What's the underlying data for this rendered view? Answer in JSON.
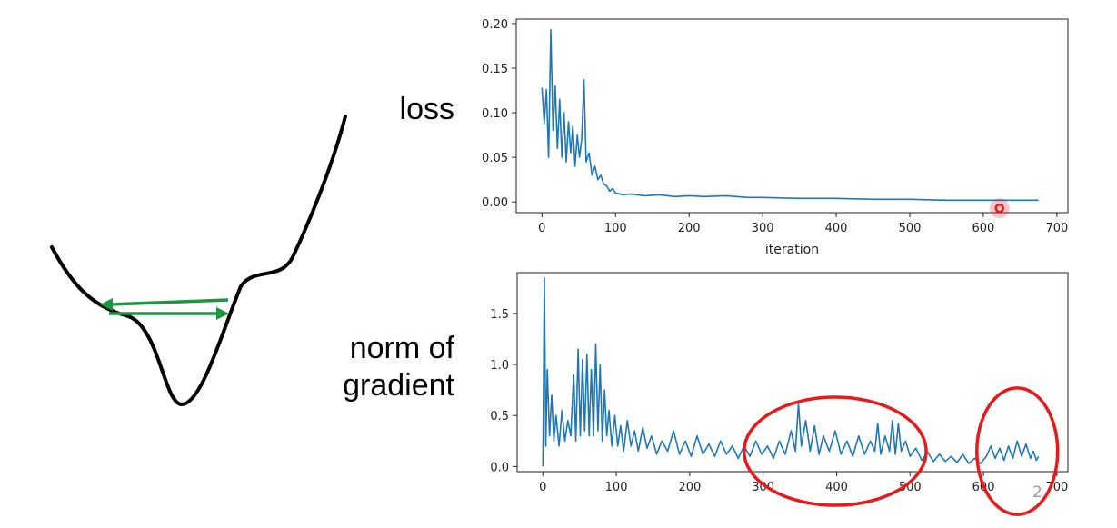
{
  "labels": {
    "loss": "loss",
    "gradient_line1": "norm of",
    "gradient_line2": "gradient"
  },
  "page_number": "2",
  "colors": {
    "series": "#1f77b4",
    "highlight": "#e41a1c",
    "arrow": "#1a9641",
    "curve": "#000000"
  },
  "chart_data": [
    {
      "type": "line",
      "xlabel": "iteration",
      "ylabel": "",
      "xlim": [
        -35,
        715
      ],
      "ylim": [
        -0.012,
        0.205
      ],
      "xticks": [
        0,
        100,
        200,
        300,
        400,
        500,
        600,
        700
      ],
      "yticks": [
        "0.00",
        "0.05",
        "0.10",
        "0.15",
        "0.20"
      ],
      "series": [
        {
          "name": "",
          "values": [
            {
              "x": 0,
              "y": 0.128
            },
            {
              "x": 3,
              "y": 0.088
            },
            {
              "x": 6,
              "y": 0.126
            },
            {
              "x": 9,
              "y": 0.05
            },
            {
              "x": 12,
              "y": 0.193
            },
            {
              "x": 15,
              "y": 0.08
            },
            {
              "x": 18,
              "y": 0.13
            },
            {
              "x": 21,
              "y": 0.06
            },
            {
              "x": 24,
              "y": 0.115
            },
            {
              "x": 27,
              "y": 0.05
            },
            {
              "x": 30,
              "y": 0.1
            },
            {
              "x": 33,
              "y": 0.045
            },
            {
              "x": 36,
              "y": 0.09
            },
            {
              "x": 39,
              "y": 0.055
            },
            {
              "x": 42,
              "y": 0.085
            },
            {
              "x": 45,
              "y": 0.04
            },
            {
              "x": 48,
              "y": 0.075
            },
            {
              "x": 51,
              "y": 0.05
            },
            {
              "x": 54,
              "y": 0.07
            },
            {
              "x": 57,
              "y": 0.137
            },
            {
              "x": 60,
              "y": 0.045
            },
            {
              "x": 64,
              "y": 0.055
            },
            {
              "x": 68,
              "y": 0.03
            },
            {
              "x": 72,
              "y": 0.04
            },
            {
              "x": 76,
              "y": 0.025
            },
            {
              "x": 80,
              "y": 0.03
            },
            {
              "x": 84,
              "y": 0.02
            },
            {
              "x": 88,
              "y": 0.018
            },
            {
              "x": 92,
              "y": 0.012
            },
            {
              "x": 96,
              "y": 0.015
            },
            {
              "x": 100,
              "y": 0.01
            },
            {
              "x": 110,
              "y": 0.008
            },
            {
              "x": 120,
              "y": 0.009
            },
            {
              "x": 140,
              "y": 0.007
            },
            {
              "x": 160,
              "y": 0.008
            },
            {
              "x": 180,
              "y": 0.006
            },
            {
              "x": 200,
              "y": 0.007
            },
            {
              "x": 220,
              "y": 0.006
            },
            {
              "x": 250,
              "y": 0.007
            },
            {
              "x": 280,
              "y": 0.005
            },
            {
              "x": 300,
              "y": 0.005
            },
            {
              "x": 350,
              "y": 0.004
            },
            {
              "x": 400,
              "y": 0.004
            },
            {
              "x": 450,
              "y": 0.003
            },
            {
              "x": 500,
              "y": 0.003
            },
            {
              "x": 550,
              "y": 0.002
            },
            {
              "x": 600,
              "y": 0.002
            },
            {
              "x": 650,
              "y": 0.002
            },
            {
              "x": 675,
              "y": 0.002
            }
          ]
        }
      ],
      "annotations": [
        {
          "type": "cursor-marker",
          "x": 622,
          "y": -0.007
        }
      ]
    },
    {
      "type": "line",
      "xlabel": "",
      "ylabel": "",
      "xlim": [
        -35,
        715
      ],
      "ylim": [
        -0.05,
        1.9
      ],
      "xticks": [
        0,
        100,
        200,
        300,
        400,
        500,
        600,
        700
      ],
      "yticks": [
        "0.0",
        "0.5",
        "1.0",
        "1.5"
      ],
      "series": [
        {
          "name": "",
          "values": [
            {
              "x": 0,
              "y": 0.0
            },
            {
              "x": 2,
              "y": 1.85
            },
            {
              "x": 4,
              "y": 0.2
            },
            {
              "x": 6,
              "y": 0.95
            },
            {
              "x": 9,
              "y": 0.3
            },
            {
              "x": 12,
              "y": 0.7
            },
            {
              "x": 15,
              "y": 0.25
            },
            {
              "x": 18,
              "y": 0.5
            },
            {
              "x": 22,
              "y": 0.2
            },
            {
              "x": 26,
              "y": 0.55
            },
            {
              "x": 30,
              "y": 0.25
            },
            {
              "x": 34,
              "y": 0.45
            },
            {
              "x": 38,
              "y": 0.3
            },
            {
              "x": 42,
              "y": 0.9
            },
            {
              "x": 45,
              "y": 0.25
            },
            {
              "x": 48,
              "y": 1.15
            },
            {
              "x": 51,
              "y": 0.3
            },
            {
              "x": 54,
              "y": 1.05
            },
            {
              "x": 57,
              "y": 0.35
            },
            {
              "x": 60,
              "y": 1.1
            },
            {
              "x": 63,
              "y": 0.3
            },
            {
              "x": 66,
              "y": 0.95
            },
            {
              "x": 69,
              "y": 0.3
            },
            {
              "x": 72,
              "y": 1.2
            },
            {
              "x": 75,
              "y": 0.35
            },
            {
              "x": 78,
              "y": 1.0
            },
            {
              "x": 81,
              "y": 0.25
            },
            {
              "x": 84,
              "y": 0.75
            },
            {
              "x": 87,
              "y": 0.3
            },
            {
              "x": 90,
              "y": 0.55
            },
            {
              "x": 94,
              "y": 0.2
            },
            {
              "x": 98,
              "y": 0.5
            },
            {
              "x": 102,
              "y": 0.2
            },
            {
              "x": 106,
              "y": 0.4
            },
            {
              "x": 110,
              "y": 0.15
            },
            {
              "x": 115,
              "y": 0.45
            },
            {
              "x": 120,
              "y": 0.2
            },
            {
              "x": 125,
              "y": 0.35
            },
            {
              "x": 130,
              "y": 0.15
            },
            {
              "x": 136,
              "y": 0.38
            },
            {
              "x": 142,
              "y": 0.18
            },
            {
              "x": 148,
              "y": 0.3
            },
            {
              "x": 155,
              "y": 0.12
            },
            {
              "x": 162,
              "y": 0.25
            },
            {
              "x": 170,
              "y": 0.15
            },
            {
              "x": 178,
              "y": 0.35
            },
            {
              "x": 186,
              "y": 0.12
            },
            {
              "x": 194,
              "y": 0.25
            },
            {
              "x": 202,
              "y": 0.1
            },
            {
              "x": 210,
              "y": 0.3
            },
            {
              "x": 218,
              "y": 0.12
            },
            {
              "x": 226,
              "y": 0.22
            },
            {
              "x": 234,
              "y": 0.1
            },
            {
              "x": 242,
              "y": 0.25
            },
            {
              "x": 250,
              "y": 0.12
            },
            {
              "x": 258,
              "y": 0.2
            },
            {
              "x": 266,
              "y": 0.08
            },
            {
              "x": 274,
              "y": 0.2
            },
            {
              "x": 282,
              "y": 0.1
            },
            {
              "x": 290,
              "y": 0.25
            },
            {
              "x": 298,
              "y": 0.12
            },
            {
              "x": 306,
              "y": 0.2
            },
            {
              "x": 314,
              "y": 0.08
            },
            {
              "x": 322,
              "y": 0.25
            },
            {
              "x": 330,
              "y": 0.12
            },
            {
              "x": 338,
              "y": 0.35
            },
            {
              "x": 344,
              "y": 0.15
            },
            {
              "x": 348,
              "y": 0.62
            },
            {
              "x": 352,
              "y": 0.2
            },
            {
              "x": 358,
              "y": 0.45
            },
            {
              "x": 364,
              "y": 0.15
            },
            {
              "x": 370,
              "y": 0.4
            },
            {
              "x": 376,
              "y": 0.12
            },
            {
              "x": 382,
              "y": 0.3
            },
            {
              "x": 390,
              "y": 0.15
            },
            {
              "x": 398,
              "y": 0.35
            },
            {
              "x": 406,
              "y": 0.12
            },
            {
              "x": 414,
              "y": 0.25
            },
            {
              "x": 422,
              "y": 0.1
            },
            {
              "x": 430,
              "y": 0.3
            },
            {
              "x": 438,
              "y": 0.12
            },
            {
              "x": 446,
              "y": 0.25
            },
            {
              "x": 452,
              "y": 0.15
            },
            {
              "x": 456,
              "y": 0.42
            },
            {
              "x": 460,
              "y": 0.12
            },
            {
              "x": 466,
              "y": 0.3
            },
            {
              "x": 472,
              "y": 0.15
            },
            {
              "x": 476,
              "y": 0.45
            },
            {
              "x": 480,
              "y": 0.12
            },
            {
              "x": 484,
              "y": 0.42
            },
            {
              "x": 488,
              "y": 0.15
            },
            {
              "x": 494,
              "y": 0.25
            },
            {
              "x": 500,
              "y": 0.1
            },
            {
              "x": 508,
              "y": 0.18
            },
            {
              "x": 516,
              "y": 0.06
            },
            {
              "x": 524,
              "y": 0.14
            },
            {
              "x": 532,
              "y": 0.05
            },
            {
              "x": 540,
              "y": 0.12
            },
            {
              "x": 548,
              "y": 0.05
            },
            {
              "x": 556,
              "y": 0.1
            },
            {
              "x": 564,
              "y": 0.04
            },
            {
              "x": 572,
              "y": 0.12
            },
            {
              "x": 580,
              "y": 0.03
            },
            {
              "x": 588,
              "y": 0.08
            },
            {
              "x": 596,
              "y": 0.03
            },
            {
              "x": 604,
              "y": 0.1
            },
            {
              "x": 610,
              "y": 0.2
            },
            {
              "x": 616,
              "y": 0.08
            },
            {
              "x": 622,
              "y": 0.18
            },
            {
              "x": 628,
              "y": 0.06
            },
            {
              "x": 634,
              "y": 0.2
            },
            {
              "x": 640,
              "y": 0.08
            },
            {
              "x": 646,
              "y": 0.25
            },
            {
              "x": 652,
              "y": 0.1
            },
            {
              "x": 658,
              "y": 0.22
            },
            {
              "x": 664,
              "y": 0.08
            },
            {
              "x": 668,
              "y": 0.15
            },
            {
              "x": 672,
              "y": 0.06
            },
            {
              "x": 675,
              "y": 0.1
            }
          ]
        }
      ],
      "highlights": [
        {
          "type": "ellipse",
          "cx": 398,
          "cy": 0.15,
          "rx": 124,
          "ry": 0.53
        },
        {
          "type": "ellipse",
          "cx": 646,
          "cy": 0.15,
          "rx": 55,
          "ry": 0.62
        }
      ]
    }
  ]
}
